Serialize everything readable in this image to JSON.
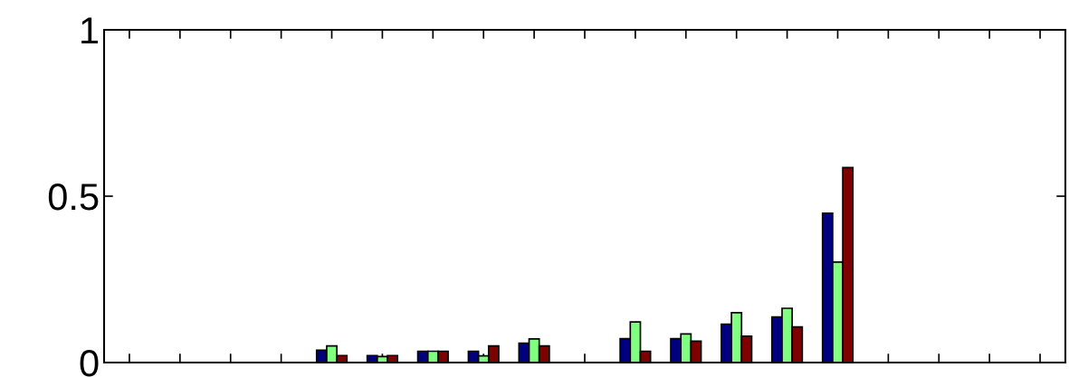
{
  "chart_data": {
    "type": "bar",
    "categories": [
      null,
      null,
      null,
      null,
      null,
      null,
      null,
      null,
      null,
      null,
      null,
      null,
      null,
      null,
      null,
      null,
      null,
      null,
      null
    ],
    "series": [
      {
        "color": "#00007f",
        "values": [
          0,
          0,
          0,
          0,
          0.037,
          0.021,
          0.034,
          0.034,
          0.058,
          0,
          0.072,
          0.072,
          0.115,
          0.137,
          0.449,
          0,
          0,
          0,
          0
        ]
      },
      {
        "color": "#80ff80",
        "values": [
          0,
          0,
          0,
          0,
          0.05,
          0.018,
          0.034,
          0.02,
          0.071,
          0,
          0.122,
          0.086,
          0.15,
          0.163,
          0.302,
          0,
          0,
          0,
          0
        ]
      },
      {
        "color": "#7f0000",
        "values": [
          0,
          0,
          0,
          0,
          0.021,
          0.021,
          0.034,
          0.05,
          0.05,
          0,
          0.034,
          0.064,
          0.079,
          0.107,
          0.586,
          0,
          0,
          0,
          0
        ]
      }
    ],
    "ylim": [
      0,
      1
    ],
    "yticks": [
      0,
      0.5,
      1
    ],
    "grid": false,
    "legend": false
  }
}
